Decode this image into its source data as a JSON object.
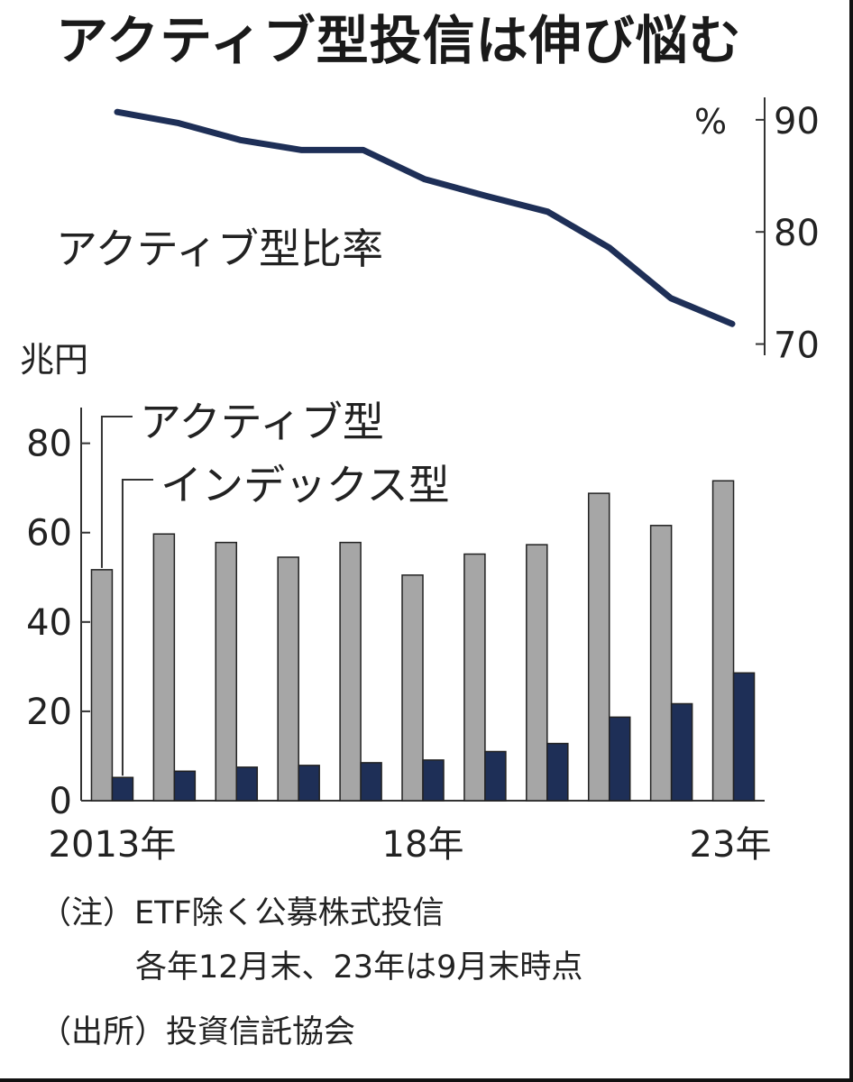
{
  "chart_data": [
    {
      "type": "line",
      "title": "アクティブ型投信は伸び悩む",
      "ylabel": "%",
      "series": [
        {
          "name": "アクティブ型比率",
          "x": [
            2013,
            2014,
            2015,
            2016,
            2017,
            2018,
            2019,
            2020,
            2021,
            2022,
            2023
          ],
          "values": [
            90.7,
            89.7,
            88.2,
            87.3,
            87.3,
            84.7,
            83.2,
            81.8,
            78.6,
            74.1,
            71.8
          ]
        }
      ],
      "ylim": [
        69,
        92
      ],
      "yticks": [
        70,
        80,
        90
      ],
      "color": "#1e2f57"
    },
    {
      "type": "bar",
      "ylabel": "兆円",
      "categories": [
        "2013年",
        "",
        "",
        "",
        "",
        "18年",
        "",
        "",
        "",
        "",
        "23年"
      ],
      "series": [
        {
          "name": "アクティブ型",
          "values": [
            51.7,
            59.7,
            57.8,
            54.5,
            57.8,
            50.5,
            55.2,
            57.3,
            68.8,
            61.6,
            71.6
          ],
          "color": "#a6a6a6"
        },
        {
          "name": "インデックス型",
          "values": [
            5.2,
            6.6,
            7.5,
            7.9,
            8.5,
            9.1,
            11.0,
            12.8,
            18.7,
            21.7,
            28.6
          ],
          "color": "#1e2f57"
        }
      ],
      "ylim": [
        0,
        88
      ],
      "yticks": [
        0,
        20,
        40,
        60,
        80
      ],
      "legend": "top-left"
    }
  ],
  "notes": [
    "（注）ETF除く公募株式投信",
    "各年12月末、23年は9月末時点",
    "（出所）投資信託協会"
  ]
}
